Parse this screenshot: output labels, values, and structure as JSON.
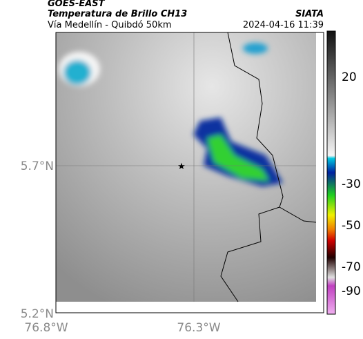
{
  "header": {
    "source": "GOES-EAST",
    "title": "Temperatura de Brillo CH13",
    "subtitle": "Vía Medellín - Quibdó 50km",
    "agency": "SIATA",
    "timestamp": "2024-04-16 11:39"
  },
  "axes": {
    "y_labels": [
      "5.7°N",
      "5.2°N"
    ],
    "x_labels": [
      "76.8°W",
      "76.3°W"
    ]
  },
  "colorbar": {
    "ticks": [
      "20",
      "-30",
      "-50",
      "-70",
      "-90"
    ]
  }
}
